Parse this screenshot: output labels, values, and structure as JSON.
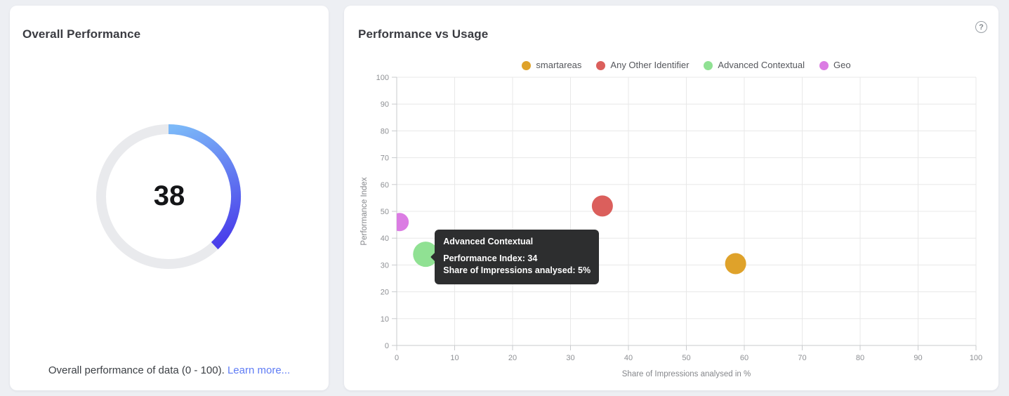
{
  "page": {
    "background": "#edeff3"
  },
  "left_card": {
    "title": "Overall Performance",
    "caption": "Overall performance of data (0 - 100).",
    "link_label": "Learn more..."
  },
  "right_card": {
    "title": "Performance vs Usage",
    "help_glyph": "?"
  },
  "chart_data": [
    {
      "type": "gauge",
      "title": "Overall Performance",
      "value": 38,
      "min": 0,
      "max": 100,
      "track_color": "#e9eaed",
      "arc_gradient": [
        "#7cb9f8",
        "#4a3eea"
      ]
    },
    {
      "type": "scatter",
      "title": "Performance vs Usage",
      "xlabel": "Share of Impressions analysed in %",
      "ylabel": "Performance Index",
      "xlim": [
        0,
        100
      ],
      "ylim": [
        0,
        100
      ],
      "x_ticks": [
        0,
        10,
        20,
        30,
        40,
        50,
        60,
        70,
        80,
        90,
        100
      ],
      "y_ticks": [
        0,
        10,
        20,
        30,
        40,
        50,
        60,
        70,
        80,
        90,
        100
      ],
      "grid": true,
      "legend_position": "top",
      "grid_color": "#e8e8e8",
      "axis_color": "#c9cbce",
      "tick_label_color": "#8e9094",
      "axis_title_color": "#85878b",
      "series": [
        {
          "name": "smartareas",
          "color": "#dfa22a",
          "points": [
            {
              "x": 58.5,
              "y": 30.5,
              "r": 15
            }
          ]
        },
        {
          "name": "Any Other Identifier",
          "color": "#db5f5c",
          "points": [
            {
              "x": 35.5,
              "y": 52,
              "r": 15
            }
          ]
        },
        {
          "name": "Advanced Contextual",
          "color": "#90e193",
          "points": [
            {
              "x": 5,
              "y": 34,
              "r": 18
            }
          ]
        },
        {
          "name": "Geo",
          "color": "#db7ce3",
          "points": [
            {
              "x": 0.5,
              "y": 46,
              "r": 13
            }
          ]
        }
      ],
      "tooltip": {
        "title": "Advanced Contextual",
        "lines": [
          "Performance Index: 34",
          "Share of Impressions analysed: 5%"
        ],
        "anchor": {
          "x": 5,
          "y": 34
        }
      }
    }
  ]
}
